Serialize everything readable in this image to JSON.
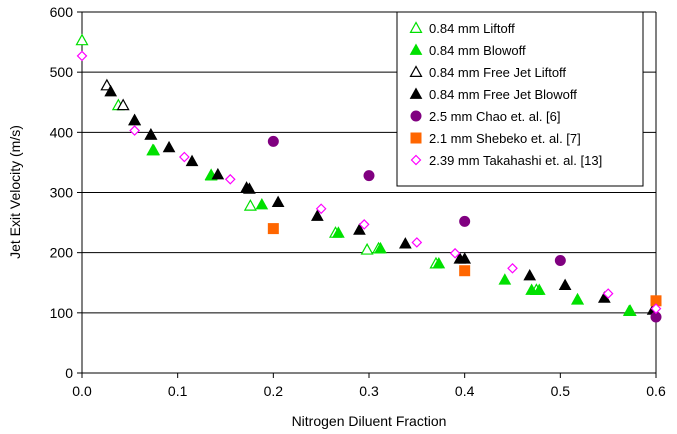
{
  "chart_data": {
    "type": "scatter",
    "title": "",
    "xlabel": "Nitrogen Diluent Fraction",
    "ylabel": "Jet Exit Velocity (m/s)",
    "xlim": [
      0.0,
      0.6
    ],
    "ylim": [
      0,
      600
    ],
    "x_ticks": [
      "0.0",
      "0.1",
      "0.2",
      "0.3",
      "0.4",
      "0.5",
      "0.6"
    ],
    "y_ticks": [
      "0",
      "100",
      "200",
      "300",
      "400",
      "500",
      "600"
    ],
    "grid": "horizontal",
    "legend_position": "top-right",
    "series": [
      {
        "name": "0.84 mm Liftoff",
        "marker": "triangle-open",
        "color": "#00e000",
        "points": [
          [
            0.0,
            553
          ],
          [
            0.038,
            445
          ],
          [
            0.074,
            370
          ],
          [
            0.135,
            329
          ],
          [
            0.176,
            278
          ],
          [
            0.265,
            233
          ],
          [
            0.298,
            205
          ],
          [
            0.31,
            207
          ],
          [
            0.37,
            182
          ],
          [
            0.475,
            138
          ],
          [
            0.518,
            122
          ],
          [
            0.573,
            103
          ]
        ]
      },
      {
        "name": "0.84 mm Blowoff",
        "marker": "triangle-filled",
        "color": "#00e000",
        "points": [
          [
            0.075,
            370
          ],
          [
            0.135,
            328
          ],
          [
            0.188,
            280
          ],
          [
            0.268,
            233
          ],
          [
            0.312,
            207
          ],
          [
            0.373,
            182
          ],
          [
            0.442,
            155
          ],
          [
            0.47,
            138
          ],
          [
            0.478,
            138
          ],
          [
            0.518,
            122
          ],
          [
            0.572,
            103
          ]
        ]
      },
      {
        "name": "0.84 mm Free Jet Liftoff",
        "marker": "triangle-open",
        "color": "#000000",
        "points": [
          [
            0.026,
            478
          ],
          [
            0.043,
            445
          ],
          [
            0.055,
            420
          ],
          [
            0.072,
            396
          ]
        ]
      },
      {
        "name": "0.84 mm Free Jet Blowoff",
        "marker": "triangle-filled",
        "color": "#000000",
        "points": [
          [
            0.03,
            468
          ],
          [
            0.055,
            420
          ],
          [
            0.072,
            396
          ],
          [
            0.091,
            375
          ],
          [
            0.115,
            352
          ],
          [
            0.142,
            330
          ],
          [
            0.172,
            308
          ],
          [
            0.175,
            306
          ],
          [
            0.205,
            284
          ],
          [
            0.246,
            261
          ],
          [
            0.29,
            238
          ],
          [
            0.338,
            215
          ],
          [
            0.395,
            190
          ],
          [
            0.4,
            190
          ],
          [
            0.468,
            162
          ],
          [
            0.505,
            146
          ],
          [
            0.546,
            125
          ],
          [
            0.597,
            105
          ]
        ]
      },
      {
        "name": "2.5 mm Chao et. al. [6]",
        "marker": "circle-filled",
        "color": "#800080",
        "points": [
          [
            0.2,
            385
          ],
          [
            0.3,
            328
          ],
          [
            0.4,
            252
          ],
          [
            0.5,
            187
          ],
          [
            0.6,
            93
          ]
        ]
      },
      {
        "name": "2.1 mm Shebeko et. al. [7]",
        "marker": "square-filled",
        "color": "#ff6600",
        "points": [
          [
            0.2,
            240
          ],
          [
            0.4,
            170
          ],
          [
            0.6,
            120
          ]
        ]
      },
      {
        "name": "2.39 mm Takahashi et. al. [13]",
        "marker": "diamond-open",
        "color": "#ff00ff",
        "points": [
          [
            0.0,
            527
          ],
          [
            0.055,
            403
          ],
          [
            0.107,
            359
          ],
          [
            0.155,
            322
          ],
          [
            0.25,
            273
          ],
          [
            0.295,
            247
          ],
          [
            0.35,
            217
          ],
          [
            0.39,
            199
          ],
          [
            0.45,
            174
          ],
          [
            0.55,
            132
          ],
          [
            0.6,
            107
          ]
        ]
      }
    ]
  }
}
